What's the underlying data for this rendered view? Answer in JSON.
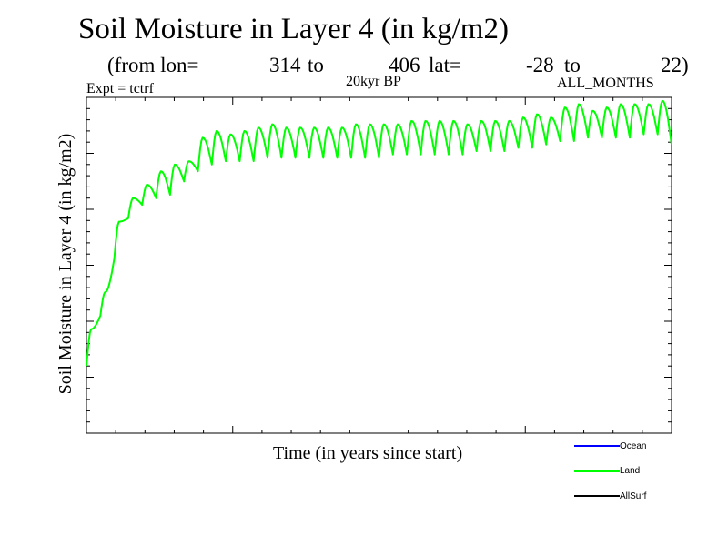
{
  "header": {
    "title": "Soil Moisture in Layer 4 (in kg/m2)",
    "subtitle": {
      "from_lon_label": "(from lon=",
      "lon_start": "314",
      "to_label_1": "to",
      "lon_end": "406",
      "lat_label": "lat=",
      "lat_start": "-28",
      "to_label_2": "to",
      "lat_end": "22)"
    },
    "experiment": "Expt = tctrf",
    "period": "20kyr BP",
    "months": "ALL_MONTHS"
  },
  "legend": [
    {
      "label": "Ocean",
      "color": "#0000ff"
    },
    {
      "label": "Land",
      "color": "#00ff00"
    },
    {
      "label": "AllSurf",
      "color": "#000000"
    }
  ],
  "chart_data": {
    "type": "line",
    "title": "Soil Moisture in Layer 4 (in kg/m2)",
    "xlabel": "Time (in years since start)",
    "ylabel": "Soil Moisture in Layer 4 (in kg/m2)",
    "xlim": [
      0,
      42
    ],
    "ylim": [
      0,
      100
    ],
    "series": [
      {
        "name": "Land",
        "color": "#00ff00",
        "annual_peaks": [
          31,
          42,
          63,
          70,
          74,
          78,
          80,
          81,
          88,
          90,
          89,
          90,
          91,
          92,
          91,
          91,
          91,
          91,
          91,
          92,
          92,
          92,
          92,
          93,
          93,
          93,
          93,
          92,
          93,
          93,
          93,
          94,
          95,
          94,
          97,
          98,
          96,
          97,
          98,
          98,
          98,
          99
        ],
        "annual_troughs": [
          20,
          35,
          52,
          64,
          68,
          70,
          71,
          75,
          78,
          80,
          81,
          81,
          81,
          82,
          82,
          82,
          82,
          82,
          82,
          82,
          82,
          82,
          83,
          83,
          83,
          83,
          83,
          83,
          84,
          84,
          84,
          85,
          85,
          86,
          87,
          87,
          88,
          88,
          88,
          88,
          89,
          89
        ],
        "end_value": 86
      },
      {
        "name": "Ocean",
        "color": "#0000ff",
        "values": []
      },
      {
        "name": "AllSurf",
        "color": "#000000",
        "values": []
      }
    ]
  }
}
